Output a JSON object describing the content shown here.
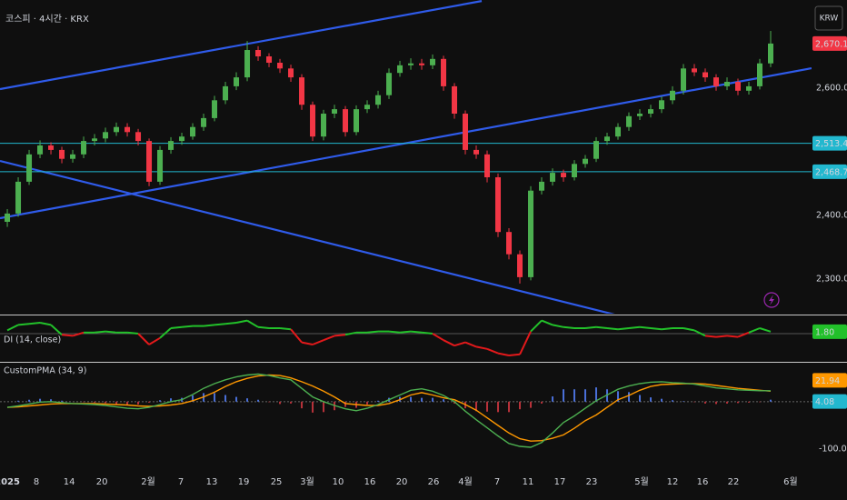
{
  "chart_data": [
    {
      "type": "candlestick",
      "title": "코스피 · 4시간 · KRX",
      "currency": "KRW",
      "xlim": [
        -0.67,
        73.5
      ],
      "ylim": [
        2245.7,
        2738.6
      ],
      "yticks": [
        {
          "value": 2300,
          "label": "2,300.00"
        },
        {
          "value": 2400,
          "label": "2,400.00"
        },
        {
          "value": 2600,
          "label": "2,600.00"
        }
      ],
      "colors": {
        "up": "#4caf50",
        "down": "#f23645"
      },
      "open": [
        2390,
        2403,
        2453,
        2496,
        2510,
        2503,
        2489,
        2496,
        2517,
        2521,
        2531,
        2539,
        2531,
        2517,
        2453,
        2503,
        2517,
        2524,
        2539,
        2553,
        2581,
        2603,
        2617,
        2660,
        2650,
        2640,
        2631,
        2617,
        2574,
        2524,
        2560,
        2567,
        2531,
        2567,
        2574,
        2589,
        2624,
        2636,
        2639,
        2636,
        2646,
        2603,
        2560,
        2503,
        2496,
        2460,
        2374,
        2339,
        2303,
        2439,
        2453,
        2467,
        2460,
        2481,
        2489,
        2517,
        2524,
        2539,
        2556,
        2560,
        2567,
        2581,
        2596,
        2631,
        2625,
        2617,
        2603,
        2610,
        2596,
        2603,
        2639
      ],
      "high": [
        2410,
        2460,
        2503,
        2518,
        2515,
        2508,
        2503,
        2524,
        2528,
        2538,
        2546,
        2545,
        2536,
        2521,
        2509,
        2523,
        2530,
        2545,
        2560,
        2588,
        2610,
        2625,
        2674,
        2666,
        2655,
        2646,
        2637,
        2622,
        2579,
        2566,
        2574,
        2572,
        2573,
        2581,
        2596,
        2631,
        2643,
        2647,
        2646,
        2653,
        2651,
        2608,
        2565,
        2510,
        2502,
        2466,
        2380,
        2345,
        2446,
        2460,
        2474,
        2472,
        2487,
        2495,
        2523,
        2530,
        2545,
        2562,
        2567,
        2574,
        2587,
        2603,
        2638,
        2638,
        2631,
        2622,
        2617,
        2615,
        2610,
        2646,
        2690
      ],
      "low": [
        2382,
        2398,
        2448,
        2490,
        2496,
        2482,
        2483,
        2490,
        2510,
        2515,
        2525,
        2524,
        2510,
        2446,
        2448,
        2497,
        2511,
        2519,
        2533,
        2548,
        2575,
        2597,
        2611,
        2643,
        2633,
        2624,
        2610,
        2566,
        2517,
        2518,
        2553,
        2524,
        2526,
        2561,
        2568,
        2583,
        2618,
        2629,
        2629,
        2630,
        2596,
        2552,
        2496,
        2489,
        2452,
        2366,
        2331,
        2293,
        2298,
        2433,
        2447,
        2453,
        2455,
        2475,
        2484,
        2511,
        2519,
        2533,
        2550,
        2554,
        2561,
        2575,
        2590,
        2619,
        2610,
        2596,
        2597,
        2589,
        2590,
        2598,
        2633
      ],
      "close": [
        2403,
        2453,
        2496,
        2510,
        2503,
        2489,
        2496,
        2517,
        2521,
        2531,
        2539,
        2531,
        2517,
        2453,
        2503,
        2517,
        2524,
        2539,
        2553,
        2581,
        2603,
        2617,
        2660,
        2650,
        2640,
        2631,
        2617,
        2574,
        2524,
        2560,
        2567,
        2531,
        2567,
        2574,
        2589,
        2624,
        2636,
        2639,
        2636,
        2646,
        2603,
        2560,
        2503,
        2496,
        2460,
        2374,
        2339,
        2303,
        2439,
        2453,
        2467,
        2460,
        2481,
        2489,
        2517,
        2524,
        2539,
        2556,
        2560,
        2567,
        2581,
        2596,
        2631,
        2625,
        2617,
        2603,
        2610,
        2596,
        2603,
        2639,
        2670.15
      ],
      "last_price": {
        "value": 2670.15,
        "label": "2,670.15",
        "color": "#f23645"
      },
      "hlines": [
        {
          "value": 2513.44,
          "label": "2,513.44",
          "color": "#22b8cf"
        },
        {
          "value": 2468.74,
          "label": "2,468.74",
          "color": "#22b8cf"
        }
      ],
      "trendlines": {
        "color": "#2f5bea",
        "lines": [
          {
            "x": [
              -0.67,
              43.5
            ],
            "y": [
              2598.6,
              2737
            ]
          },
          {
            "x": [
              -0.67,
              73.75
            ],
            "y": [
              2395.7,
              2631.4
            ]
          },
          {
            "x": [
              -0.67,
              56
            ],
            "y": [
              2485.7,
              2242.9
            ]
          }
        ]
      }
    },
    {
      "type": "line",
      "title": "DI (14, close)",
      "ylim": [
        -25,
        15
      ],
      "baseline": 0,
      "colors": {
        "up": "#22c12a",
        "down": "#e3191b"
      },
      "values": [
        3,
        8,
        9,
        10,
        8,
        -1,
        -2,
        1,
        1,
        2,
        1,
        1,
        0,
        -10,
        -4,
        5,
        6,
        7,
        7,
        8,
        9,
        10,
        12,
        6,
        5,
        5,
        4,
        -8,
        -10,
        -6,
        -2,
        -1,
        1,
        1,
        2,
        2,
        1,
        2,
        1,
        0,
        -6,
        -11,
        -8,
        -12,
        -14,
        -18,
        -20,
        -19,
        2,
        12,
        8,
        6,
        5,
        5,
        6,
        5,
        4,
        5,
        6,
        5,
        4,
        5,
        5,
        3,
        -2,
        -3,
        -2,
        -3,
        1,
        5,
        1.8
      ],
      "last_label": {
        "value": 1.8,
        "label": "1.80",
        "color": "#22c12a"
      }
    },
    {
      "type": "oscillator",
      "title": "CustomPMA (34, 9)",
      "ylim": [
        -140,
        80
      ],
      "baseline": 0,
      "yticks": [
        {
          "value": -100,
          "label": "-100.00"
        }
      ],
      "xticks": [
        {
          "value": 0,
          "label": "2025"
        },
        {
          "value": 2.67,
          "label": "8"
        },
        {
          "value": 5.67,
          "label": "14"
        },
        {
          "value": 8.67,
          "label": "20"
        },
        {
          "value": 12.92,
          "label": "2월"
        },
        {
          "value": 15.92,
          "label": "7"
        },
        {
          "value": 18.75,
          "label": "13"
        },
        {
          "value": 21.67,
          "label": "19"
        },
        {
          "value": 24.67,
          "label": "25"
        },
        {
          "value": 27.5,
          "label": "3월"
        },
        {
          "value": 30.33,
          "label": "10"
        },
        {
          "value": 33.25,
          "label": "16"
        },
        {
          "value": 36.17,
          "label": "20"
        },
        {
          "value": 39.08,
          "label": "26"
        },
        {
          "value": 42,
          "label": "4월"
        },
        {
          "value": 44.92,
          "label": "7"
        },
        {
          "value": 47.75,
          "label": "11"
        },
        {
          "value": 50.67,
          "label": "17"
        },
        {
          "value": 53.58,
          "label": "23"
        },
        {
          "value": 58.17,
          "label": "5월"
        },
        {
          "value": 61,
          "label": "12"
        },
        {
          "value": 63.75,
          "label": "16"
        },
        {
          "value": 66.58,
          "label": "22"
        },
        {
          "value": 71.83,
          "label": "6월"
        }
      ],
      "fast": {
        "color": "#4caf50",
        "values": [
          -12,
          -9,
          -5,
          -1,
          0,
          -2,
          -4,
          -5,
          -6,
          -8,
          -11,
          -14,
          -15,
          -12,
          -6,
          0,
          4,
          15,
          28,
          38,
          46,
          52,
          56,
          58,
          55,
          50,
          46,
          28,
          10,
          0,
          -8,
          -15,
          -19,
          -14,
          -6,
          4,
          14,
          24,
          27,
          22,
          13,
          0,
          -20,
          -38,
          -55,
          -72,
          -88,
          -94,
          -96,
          -86,
          -66,
          -44,
          -30,
          -14,
          2,
          14,
          26,
          33,
          38,
          41,
          42,
          40,
          39,
          37,
          33,
          29,
          27,
          25,
          24,
          23,
          23
        ]
      },
      "slow": {
        "color": "#ff9800",
        "values": [
          -12,
          -11,
          -9,
          -7,
          -5,
          -4,
          -4,
          -4,
          -4,
          -5,
          -6,
          -7,
          -9,
          -10,
          -9,
          -7,
          -4,
          2,
          10,
          20,
          32,
          42,
          49,
          54,
          56,
          55,
          50,
          42,
          33,
          22,
          10,
          -4,
          -6,
          -8,
          -8,
          -4,
          4,
          14,
          19,
          14,
          8,
          4,
          -6,
          -18,
          -34,
          -50,
          -66,
          -78,
          -83,
          -82,
          -77,
          -70,
          -56,
          -40,
          -28,
          -12,
          4,
          13,
          24,
          32,
          36,
          37,
          38,
          38,
          37,
          34,
          31,
          28,
          26,
          24,
          21.94
        ]
      },
      "histogram": {
        "colors": {
          "up": "#4a6fd8",
          "down": "#b8323a"
        },
        "values": [
          0,
          2,
          4,
          6,
          5,
          2,
          0,
          -1,
          -2,
          -3,
          -5,
          -7,
          -6,
          -2,
          3,
          7,
          8,
          13,
          18,
          18,
          14,
          10,
          7,
          4,
          -1,
          -5,
          -4,
          -14,
          -23,
          -22,
          -18,
          -11,
          -13,
          -6,
          2,
          8,
          10,
          10,
          8,
          8,
          5,
          -4,
          -14,
          -20,
          -21,
          -22,
          -22,
          -16,
          -13,
          -4,
          11,
          26,
          26,
          26,
          30,
          26,
          22,
          20,
          14,
          9,
          6,
          3,
          1,
          -1,
          -4,
          -5,
          -4,
          -3,
          -2,
          -1,
          4.08
        ]
      },
      "slow_label": {
        "value": 21.94,
        "label": "21.94",
        "color": "#ff9800"
      },
      "histogram_label": {
        "value": 4.08,
        "label": "4.08",
        "color": "#22b8cf"
      }
    }
  ]
}
